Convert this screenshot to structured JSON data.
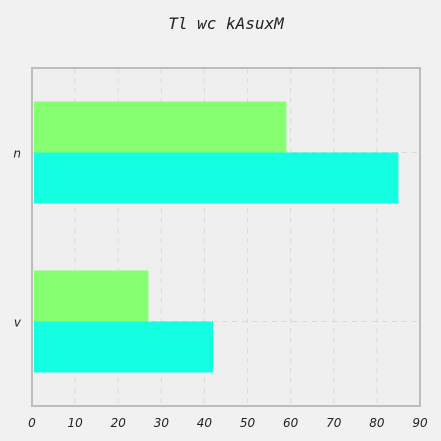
{
  "chart_data": {
    "type": "bar",
    "orientation": "horizontal",
    "title": "Tl wc kAsuxM",
    "categories": [
      "v",
      "n"
    ],
    "series": [
      {
        "values": [
          42,
          85
        ],
        "color": "#14ffe1"
      },
      {
        "values": [
          27,
          59
        ],
        "color": "#86ff70"
      }
    ],
    "xlim": [
      0,
      90
    ],
    "xticks": [
      0,
      10,
      20,
      30,
      40,
      50,
      60,
      70,
      80,
      90
    ],
    "grid": true,
    "grid_style": "dashed",
    "background_color": "#efefef",
    "frame_color": "#bdbdbd"
  }
}
